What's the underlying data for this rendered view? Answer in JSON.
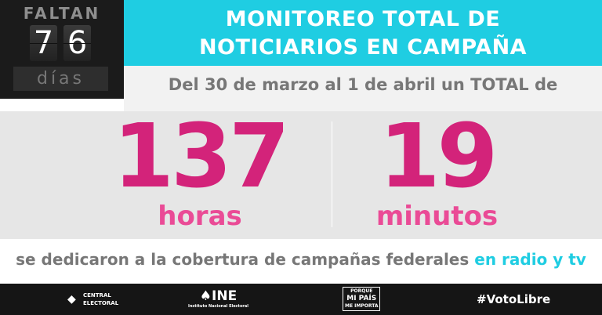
{
  "counter": {
    "label": "FALTAN",
    "digits": [
      "7",
      "6"
    ],
    "unit": "días"
  },
  "header": {
    "line1": "MONITOREO TOTAL DE",
    "line2": "NOTICIARIOS EN CAMPAÑA"
  },
  "subtitle": "Del 30 de marzo al 1 de abril un TOTAL de",
  "stats": [
    {
      "value": "137",
      "unit": "horas"
    },
    {
      "value": "19",
      "unit": "minutos"
    }
  ],
  "bottom": {
    "text": "se dedicaron a la cobertura de campañas federales ",
    "highlight": "en radio y tv"
  },
  "footer": {
    "central_line1": "CENTRAL",
    "central_line2": "ELECTORAL",
    "ine": "INE",
    "ine_sub": "Instituto Nacional Electoral",
    "porque_line1": "PORQUE",
    "porque_line2": "MI PAÍS",
    "porque_line3": "ME IMPORTA",
    "hashtag": "#VotoLibre"
  },
  "colors": {
    "cyan": "#1fcde2",
    "pink": "#d3237a",
    "pink_light": "#ea4b96"
  }
}
